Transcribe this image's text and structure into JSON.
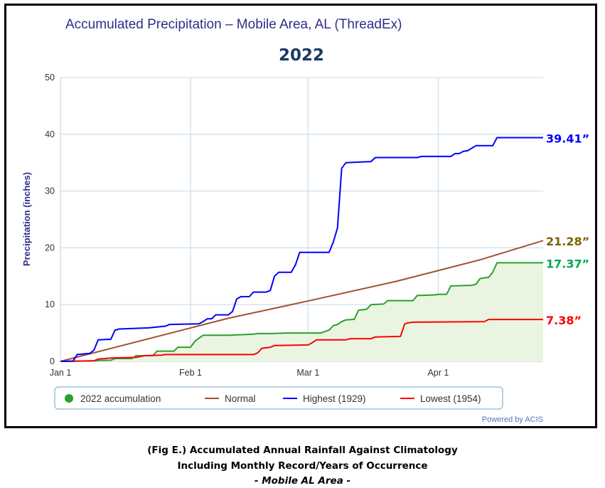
{
  "chart_data": {
    "type": "area",
    "title": "Accumulated Precipitation – Mobile Area, AL (ThreadEx)",
    "subtitle": "2022",
    "ylabel": "Precipitation (inches)",
    "xlabel": "",
    "ylim": [
      0,
      50
    ],
    "yticks": [
      0,
      10,
      20,
      30,
      40,
      50
    ],
    "x_unit": "day of year (Jan 1 = 0)",
    "xlim": [
      0,
      115
    ],
    "xticks": [
      {
        "label": "Jan 1",
        "day": 0
      },
      {
        "label": "Feb 1",
        "day": 31
      },
      {
        "label": "Mar 1",
        "day": 59
      },
      {
        "label": "Apr 1",
        "day": 90
      }
    ],
    "grid": true,
    "legend_position": "bottom",
    "credit": "Powered by ACIS",
    "series": [
      {
        "name": "2022 accumulation",
        "legend_symbol": "circle",
        "color": "#2ca02c",
        "fill": "#e9f5e1",
        "end_label": "17.37”",
        "label_color": "#00a650",
        "points": [
          [
            0,
            0
          ],
          [
            5,
            0.05
          ],
          [
            8,
            0.1
          ],
          [
            9,
            0.15
          ],
          [
            12,
            0.2
          ],
          [
            13,
            0.5
          ],
          [
            17,
            0.5
          ],
          [
            18,
            1.0
          ],
          [
            22,
            1.0
          ],
          [
            23,
            1.8
          ],
          [
            27,
            1.8
          ],
          [
            28,
            2.5
          ],
          [
            31,
            2.5
          ],
          [
            32,
            3.5
          ],
          [
            33,
            4.1
          ],
          [
            34,
            4.6
          ],
          [
            40,
            4.6
          ],
          [
            43,
            4.7
          ],
          [
            46,
            4.8
          ],
          [
            47,
            4.9
          ],
          [
            50,
            4.9
          ],
          [
            54,
            5.0
          ],
          [
            62,
            5.0
          ],
          [
            64,
            5.5
          ],
          [
            65,
            6.3
          ],
          [
            66,
            6.5
          ],
          [
            67,
            7.0
          ],
          [
            68,
            7.3
          ],
          [
            70,
            7.4
          ],
          [
            71,
            9.0
          ],
          [
            73,
            9.2
          ],
          [
            74,
            10.0
          ],
          [
            77,
            10.1
          ],
          [
            78,
            10.7
          ],
          [
            84,
            10.7
          ],
          [
            85,
            11.6
          ],
          [
            89,
            11.7
          ],
          [
            90,
            11.8
          ],
          [
            92,
            11.8
          ],
          [
            93,
            13.3
          ],
          [
            98,
            13.4
          ],
          [
            99,
            13.6
          ],
          [
            100,
            14.6
          ],
          [
            102,
            14.8
          ],
          [
            103,
            15.7
          ],
          [
            104,
            17.37
          ],
          [
            115,
            17.37
          ]
        ]
      },
      {
        "name": "Normal",
        "legend_symbol": "line",
        "color": "#a0522d",
        "end_label": "21.28”",
        "label_color": "#7f6000",
        "points": [
          [
            0,
            0
          ],
          [
            20,
            3.8
          ],
          [
            40,
            7.6
          ],
          [
            60,
            10.8
          ],
          [
            80,
            14.1
          ],
          [
            100,
            17.9
          ],
          [
            115,
            21.28
          ]
        ]
      },
      {
        "name": "Highest (1929)",
        "legend_symbol": "line",
        "color": "#0000ff",
        "end_label": "39.41”",
        "label_color": "#0000ff",
        "points": [
          [
            0,
            0
          ],
          [
            3,
            0.05
          ],
          [
            4,
            1.2
          ],
          [
            7,
            1.4
          ],
          [
            8,
            2.0
          ],
          [
            9,
            3.8
          ],
          [
            12,
            3.9
          ],
          [
            13,
            5.5
          ],
          [
            14,
            5.7
          ],
          [
            21,
            5.9
          ],
          [
            25,
            6.2
          ],
          [
            26,
            6.5
          ],
          [
            33,
            6.6
          ],
          [
            34,
            7.0
          ],
          [
            35,
            7.5
          ],
          [
            36,
            7.5
          ],
          [
            37,
            8.2
          ],
          [
            40,
            8.2
          ],
          [
            41,
            8.8
          ],
          [
            42,
            11.0
          ],
          [
            43,
            11.4
          ],
          [
            45,
            11.4
          ],
          [
            46,
            12.2
          ],
          [
            49,
            12.2
          ],
          [
            50,
            12.5
          ],
          [
            51,
            15.0
          ],
          [
            52,
            15.7
          ],
          [
            55,
            15.7
          ],
          [
            56,
            17.0
          ],
          [
            57,
            19.2
          ],
          [
            64,
            19.2
          ],
          [
            65,
            21.0
          ],
          [
            66,
            23.5
          ],
          [
            67,
            34.0
          ],
          [
            68,
            35.0
          ],
          [
            74,
            35.2
          ],
          [
            75,
            35.9
          ],
          [
            85,
            35.9
          ],
          [
            86,
            36.1
          ],
          [
            93,
            36.1
          ],
          [
            94,
            36.6
          ],
          [
            95,
            36.6
          ],
          [
            96,
            37.0
          ],
          [
            97,
            37.1
          ],
          [
            99,
            38.0
          ],
          [
            103,
            38.0
          ],
          [
            104,
            39.41
          ],
          [
            115,
            39.41
          ]
        ]
      },
      {
        "name": "Lowest (1954)",
        "legend_symbol": "line",
        "color": "#ff0000",
        "end_label": "7.38”",
        "label_color": "#ff0000",
        "points": [
          [
            0,
            0
          ],
          [
            8,
            0.1
          ],
          [
            9,
            0.4
          ],
          [
            12,
            0.6
          ],
          [
            18,
            0.7
          ],
          [
            20,
            1.0
          ],
          [
            24,
            1.1
          ],
          [
            25,
            1.2
          ],
          [
            46,
            1.2
          ],
          [
            47,
            1.5
          ],
          [
            48,
            2.3
          ],
          [
            50,
            2.5
          ],
          [
            51,
            2.8
          ],
          [
            59,
            2.9
          ],
          [
            60,
            3.3
          ],
          [
            61,
            3.8
          ],
          [
            68,
            3.8
          ],
          [
            69,
            4.0
          ],
          [
            74,
            4.0
          ],
          [
            75,
            4.3
          ],
          [
            81,
            4.4
          ],
          [
            82,
            6.6
          ],
          [
            83,
            6.8
          ],
          [
            84,
            6.9
          ],
          [
            101,
            7.0
          ],
          [
            102,
            7.38
          ],
          [
            115,
            7.38
          ]
        ]
      }
    ]
  },
  "caption": {
    "line1": "(Fig E.) Accumulated Annual Rainfall Against  Climatology",
    "line2": "Including Monthly Record/Years of Occurrence",
    "line3": "- Mobile AL Area -"
  }
}
